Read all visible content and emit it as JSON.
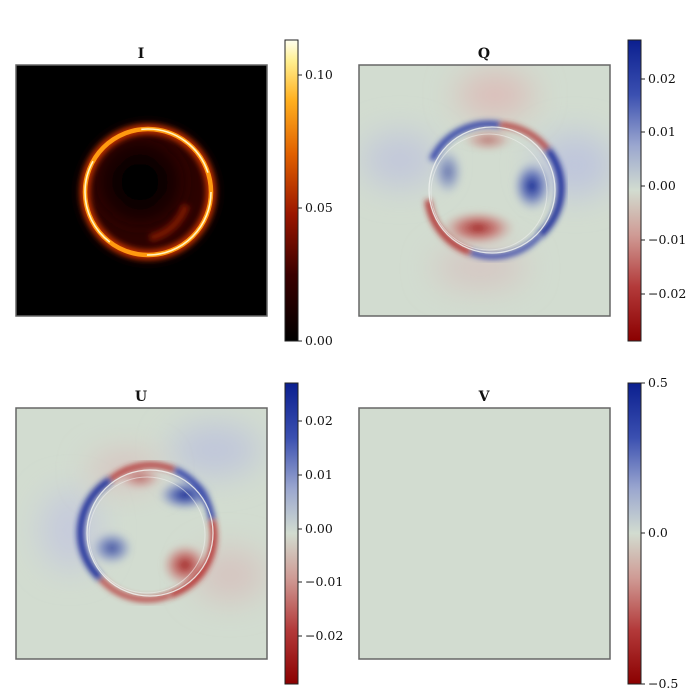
{
  "chart_data": [
    {
      "type": "heatmap",
      "title": "I",
      "colormap": "afmhot",
      "colorbar": {
        "range": [
          0.0,
          0.11
        ],
        "ticks": [
          0.0,
          0.05,
          0.1
        ],
        "tick_labels": [
          "0.00",
          "0.05",
          "0.10"
        ]
      },
      "feature": "bright thin emission ring with dark central shadow"
    },
    {
      "type": "heatmap",
      "title": "Q",
      "colormap": "RdBu",
      "colorbar": {
        "range": [
          -0.028,
          0.028
        ],
        "ticks": [
          0.02,
          0.01,
          0.0,
          -0.01,
          -0.02
        ],
        "tick_labels": [
          "0.02",
          "0.01",
          "0.00",
          "−0.01",
          "−0.02"
        ]
      },
      "feature": "alternating positive/negative lobes along the ring"
    },
    {
      "type": "heatmap",
      "title": "U",
      "colormap": "RdBu",
      "colorbar": {
        "range": [
          -0.028,
          0.028
        ],
        "ticks": [
          0.02,
          0.01,
          0.0,
          -0.01,
          -0.02
        ],
        "tick_labels": [
          "0.02",
          "0.01",
          "0.00",
          "−0.01",
          "−0.02"
        ]
      },
      "feature": "alternating positive/negative lobes along the ring"
    },
    {
      "type": "heatmap",
      "title": "V",
      "colormap": "RdBu",
      "colorbar": {
        "range": [
          -0.5,
          0.5
        ],
        "ticks": [
          0.5,
          0.0,
          -0.5
        ],
        "tick_labels": [
          "0.5",
          "0.0",
          "−0.5"
        ]
      },
      "feature": "uniform zero field"
    }
  ],
  "colors": {
    "diverging_neg": "#8b0000",
    "diverging_mid": "#d2dcd0",
    "diverging_pos": "#0b1f8f",
    "hot_low": "#000000",
    "hot_mid": "#e06000",
    "hot_high": "#fffff0"
  }
}
